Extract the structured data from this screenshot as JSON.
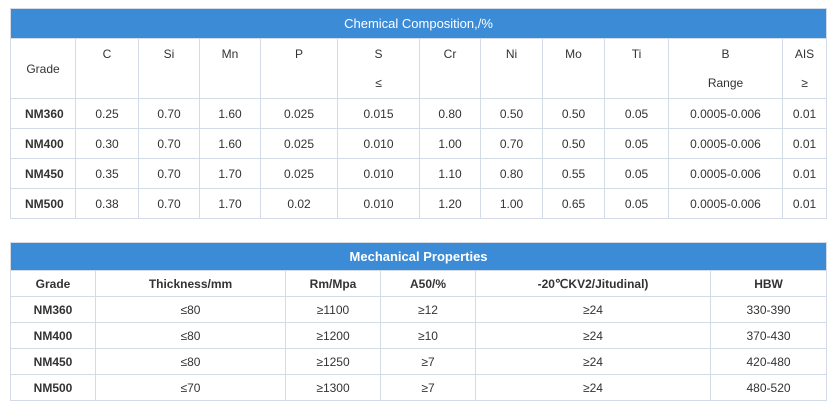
{
  "table1": {
    "title": "Chemical Composition,/%",
    "columns": [
      "Grade",
      "C",
      "Si",
      "Mn",
      "P",
      "S",
      "Cr",
      "Ni",
      "Mo",
      "Ti",
      "B",
      "AIS"
    ],
    "notes": {
      "S": "≤",
      "B": "Range",
      "AIS": "≥"
    },
    "rows": [
      [
        "NM360",
        "0.25",
        "0.70",
        "1.60",
        "0.025",
        "0.015",
        "0.80",
        "0.50",
        "0.50",
        "0.05",
        "0.0005-0.006",
        "0.01"
      ],
      [
        "NM400",
        "0.30",
        "0.70",
        "1.60",
        "0.025",
        "0.010",
        "1.00",
        "0.70",
        "0.50",
        "0.05",
        "0.0005-0.006",
        "0.01"
      ],
      [
        "NM450",
        "0.35",
        "0.70",
        "1.70",
        "0.025",
        "0.010",
        "1.10",
        "0.80",
        "0.55",
        "0.05",
        "0.0005-0.006",
        "0.01"
      ],
      [
        "NM500",
        "0.38",
        "0.70",
        "1.70",
        "0.02",
        "0.010",
        "1.20",
        "1.00",
        "0.65",
        "0.05",
        "0.0005-0.006",
        "0.01"
      ]
    ]
  },
  "table2": {
    "title": "Mechanical Properties",
    "columns": [
      "Grade",
      "Thickness/mm",
      "Rm/Mpa",
      "A50/%",
      "-20℃KV2/Jitudinal)",
      "HBW"
    ],
    "rows": [
      [
        "NM360",
        "≤80",
        "≥1100",
        "≥12",
        "≥24",
        "330-390"
      ],
      [
        "NM400",
        "≤80",
        "≥1200",
        "≥10",
        "≥24",
        "370-430"
      ],
      [
        "NM450",
        "≤80",
        "≥1250",
        "≥7",
        "≥24",
        "420-480"
      ],
      [
        "NM500",
        "≤70",
        "≥1300",
        "≥7",
        "≥24",
        "480-520"
      ]
    ]
  }
}
